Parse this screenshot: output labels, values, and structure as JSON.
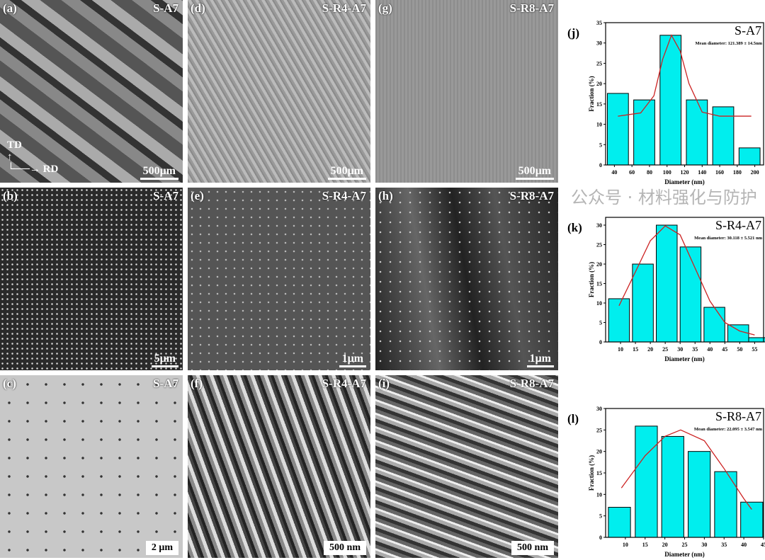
{
  "panels": [
    {
      "label": "(a)",
      "sample": "S-A7",
      "scale": "500μm",
      "axes": {
        "td": "TD",
        "rd": "RD"
      }
    },
    {
      "label": "(d)",
      "sample": "S-R4-A7",
      "scale": "500μm"
    },
    {
      "label": "(g)",
      "sample": "S-R8-A7",
      "scale": "500μm"
    },
    {
      "label": "(b)",
      "sample": "S-A7",
      "scale": "5μm"
    },
    {
      "label": "(e)",
      "sample": "S-R4-A7",
      "scale": "1μm"
    },
    {
      "label": "(h)",
      "sample": "S-R8-A7",
      "scale": "1μm"
    },
    {
      "label": "(c)",
      "sample": "S-A7",
      "scale": "2 μm"
    },
    {
      "label": "(f)",
      "sample": "S-R4-A7",
      "scale": "500 nm"
    },
    {
      "label": "(i)",
      "sample": "S-R8-A7",
      "scale": "500 nm"
    }
  ],
  "watermark": "公众号 · 材料强化与防护",
  "colors": {
    "bar": "#00eeee",
    "fit": "#cc2222"
  },
  "chart_data": [
    {
      "type": "bar",
      "panel_label": "(j)",
      "title": "S-A7",
      "annotation": "Mean diameter: 121.389 ± 14.5nm",
      "xlabel": "Diameter (nm)",
      "ylabel": "Fraction (%)",
      "xlim": [
        30,
        210
      ],
      "ylim": [
        0,
        35
      ],
      "xticks": [
        40,
        60,
        80,
        100,
        120,
        140,
        160,
        180,
        200
      ],
      "yticks": [
        0,
        5,
        10,
        15,
        20,
        25,
        30,
        35
      ],
      "bin_centers": [
        44,
        74,
        104,
        134,
        164,
        194
      ],
      "bin_width": 24,
      "values": [
        17.6,
        16,
        31.9,
        16,
        14.3,
        4.2
      ],
      "fit": {
        "x": [
          44,
          70,
          85,
          95,
          105,
          115,
          125,
          140,
          160,
          196
        ],
        "y": [
          12,
          12.8,
          17,
          26,
          31.9,
          28,
          20,
          13,
          12,
          12
        ]
      }
    },
    {
      "type": "bar",
      "panel_label": "(k)",
      "title": "S-R4-A7",
      "annotation": "Mean diameter: 30.118 ± 5.521 nm",
      "xlabel": "Diameter (nm)",
      "ylabel": "Fraction (%)",
      "xlim": [
        5,
        58
      ],
      "ylim": [
        0,
        32
      ],
      "xticks": [
        10,
        15,
        20,
        25,
        30,
        35,
        40,
        45,
        50,
        55
      ],
      "yticks": [
        0,
        5,
        10,
        15,
        20,
        25,
        30
      ],
      "bin_centers": [
        9.5,
        17.5,
        25.5,
        33.5,
        41.5,
        49.5,
        56.5
      ],
      "bin_width": 7,
      "values": [
        11.1,
        20,
        30,
        24.4,
        8.9,
        4.4,
        1.1
      ],
      "fit": {
        "x": [
          9.5,
          15,
          20,
          25,
          30,
          35,
          40,
          45,
          50,
          55
        ],
        "y": [
          9.3,
          18,
          26,
          29.8,
          27.5,
          19,
          10.5,
          5,
          2.8,
          1.8
        ]
      }
    },
    {
      "type": "bar",
      "panel_label": "(l)",
      "title": "S-R8-A7",
      "annotation": "Mean diameter: 22.095 ± 3.547 nm",
      "xlabel": "Diameter (nm)",
      "ylabel": "Fraction (%)",
      "xlim": [
        5,
        45
      ],
      "ylim": [
        0,
        30
      ],
      "xticks": [
        10,
        15,
        20,
        25,
        30,
        35,
        40,
        45
      ],
      "yticks": [
        0,
        5,
        10,
        15,
        20,
        25,
        30
      ],
      "bin_centers": [
        8.5,
        15.3,
        22,
        28.7,
        35.4,
        42
      ],
      "bin_width": 5.6,
      "values": [
        7,
        25.9,
        23.5,
        20,
        15.3,
        8.2
      ],
      "fit": {
        "x": [
          9,
          15,
          20,
          24,
          30,
          35,
          40,
          42
        ],
        "y": [
          11.5,
          19,
          23.5,
          25,
          22.5,
          16,
          9,
          6.5
        ]
      }
    }
  ]
}
